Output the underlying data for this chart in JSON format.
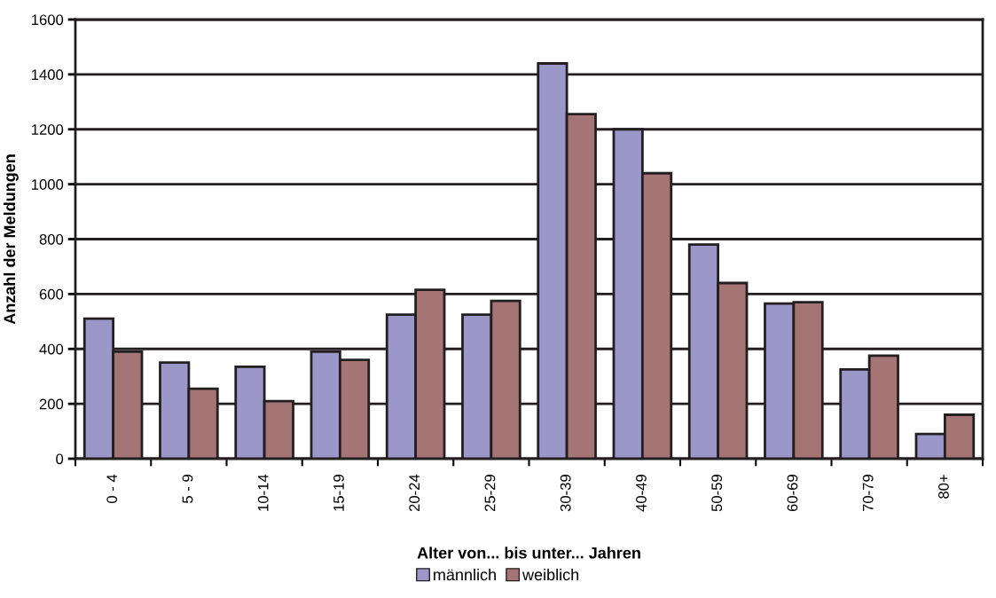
{
  "chart_data": {
    "type": "bar",
    "xlabel": "Alter von... bis unter... Jahren",
    "ylabel": "Anzahl der Meldungen",
    "categories": [
      "0 - 4",
      "5 - 9",
      "10-14",
      "15-19",
      "20-24",
      "25-29",
      "30-39",
      "40-49",
      "50-59",
      "60-69",
      "70-79",
      "80+"
    ],
    "series": [
      {
        "name": "männlich",
        "color": "#9b97c9",
        "values": [
          510,
          350,
          335,
          390,
          525,
          525,
          1440,
          1200,
          780,
          565,
          325,
          90
        ]
      },
      {
        "name": "weiblich",
        "color": "#a57474",
        "values": [
          390,
          255,
          210,
          360,
          615,
          575,
          1255,
          1040,
          640,
          570,
          375,
          160
        ]
      }
    ],
    "ylim": [
      0,
      1600
    ],
    "yticks": [
      0,
      200,
      400,
      600,
      800,
      1000,
      1200,
      1400,
      1600
    ],
    "grid": "y",
    "legend": "bottom"
  }
}
